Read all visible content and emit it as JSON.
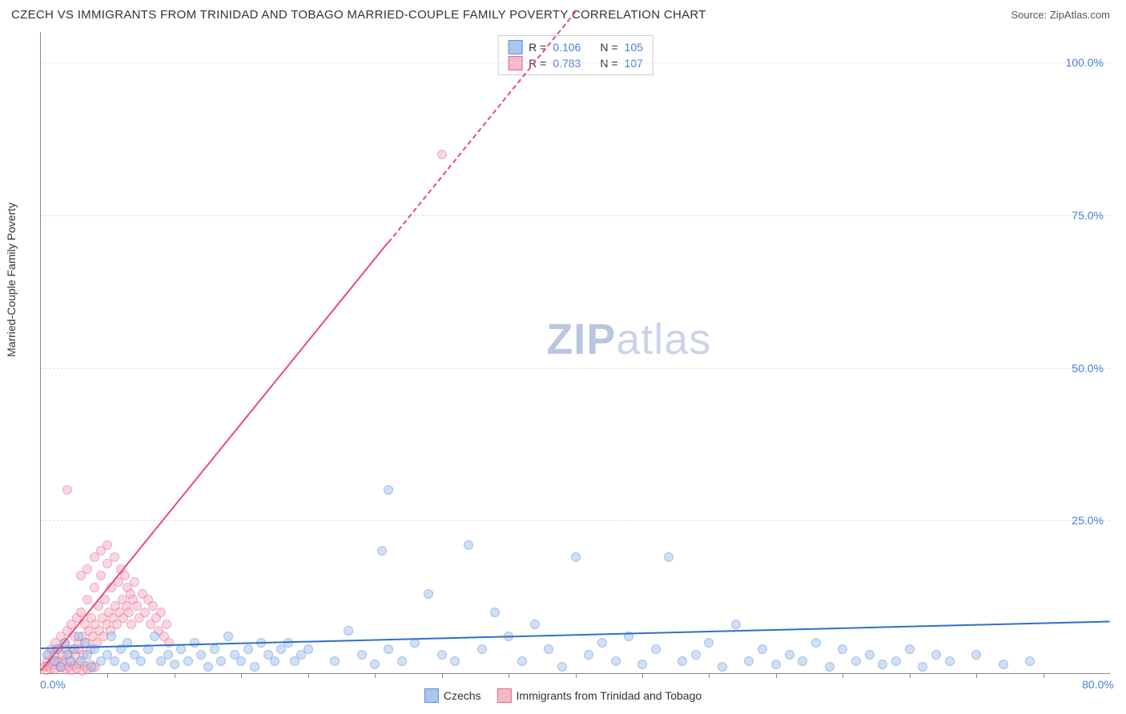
{
  "header": {
    "title": "CZECH VS IMMIGRANTS FROM TRINIDAD AND TOBAGO MARRIED-COUPLE FAMILY POVERTY CORRELATION CHART",
    "source": "Source: ZipAtlas.com"
  },
  "watermark": {
    "zip": "ZIP",
    "atlas": "atlas"
  },
  "chart": {
    "type": "scatter",
    "y_label": "Married-Couple Family Poverty",
    "xlim": [
      0,
      80
    ],
    "ylim": [
      0,
      105
    ],
    "x_ticks_major": [
      0,
      80
    ],
    "x_ticks_minor": [
      5,
      10,
      15,
      20,
      25,
      30,
      35,
      40,
      45,
      50,
      55,
      60,
      65,
      70,
      75
    ],
    "y_ticks": [
      25,
      50,
      75,
      100
    ],
    "x_tick_labels": {
      "0": "0.0%",
      "80": "80.0%"
    },
    "y_tick_labels": {
      "25": "25.0%",
      "50": "50.0%",
      "75": "75.0%",
      "100": "100.0%"
    },
    "grid_color": "#e0e0e0",
    "axis_color": "#888888",
    "tick_label_color": "#4a7fd8",
    "background_color": "#ffffff",
    "marker_radius": 6,
    "marker_stroke_width": 1,
    "series": [
      {
        "name": "Czechs",
        "fill": "#a9c6ef",
        "stroke": "#5b8fd6",
        "fill_opacity": 0.55,
        "R": 0.106,
        "N": 105,
        "trend": {
          "slope": 0.055,
          "intercept": 4.2,
          "color": "#2f6fd0",
          "solid_to_x": 80,
          "width": 2
        },
        "points": [
          [
            0.5,
            3
          ],
          [
            1,
            2
          ],
          [
            1.2,
            4
          ],
          [
            1.5,
            1
          ],
          [
            1.8,
            5
          ],
          [
            2,
            3
          ],
          [
            2.2,
            2
          ],
          [
            2.5,
            4
          ],
          [
            2.8,
            6
          ],
          [
            3,
            2
          ],
          [
            3.3,
            5
          ],
          [
            3.5,
            3
          ],
          [
            3.8,
            1
          ],
          [
            4,
            4
          ],
          [
            4.5,
            2
          ],
          [
            5,
            3
          ],
          [
            5.3,
            6
          ],
          [
            5.5,
            2
          ],
          [
            6,
            4
          ],
          [
            6.3,
            1
          ],
          [
            6.5,
            5
          ],
          [
            7,
            3
          ],
          [
            7.5,
            2
          ],
          [
            8,
            4
          ],
          [
            8.5,
            6
          ],
          [
            9,
            2
          ],
          [
            9.5,
            3
          ],
          [
            10,
            1.5
          ],
          [
            10.5,
            4
          ],
          [
            11,
            2
          ],
          [
            11.5,
            5
          ],
          [
            12,
            3
          ],
          [
            12.5,
            1
          ],
          [
            13,
            4
          ],
          [
            13.5,
            2
          ],
          [
            14,
            6
          ],
          [
            14.5,
            3
          ],
          [
            15,
            2
          ],
          [
            15.5,
            4
          ],
          [
            16,
            1
          ],
          [
            16.5,
            5
          ],
          [
            17,
            3
          ],
          [
            17.5,
            2
          ],
          [
            18,
            4
          ],
          [
            18.5,
            5
          ],
          [
            19,
            2
          ],
          [
            19.5,
            3
          ],
          [
            20,
            4
          ],
          [
            22,
            2
          ],
          [
            23,
            7
          ],
          [
            24,
            3
          ],
          [
            25,
            1.5
          ],
          [
            25.5,
            20
          ],
          [
            26,
            4
          ],
          [
            27,
            2
          ],
          [
            28,
            5
          ],
          [
            29,
            13
          ],
          [
            30,
            3
          ],
          [
            31,
            2
          ],
          [
            32,
            21
          ],
          [
            33,
            4
          ],
          [
            34,
            10
          ],
          [
            35,
            6
          ],
          [
            36,
            2
          ],
          [
            37,
            8
          ],
          [
            38,
            4
          ],
          [
            39,
            1
          ],
          [
            40,
            19
          ],
          [
            41,
            3
          ],
          [
            42,
            5
          ],
          [
            43,
            2
          ],
          [
            44,
            6
          ],
          [
            45,
            1.5
          ],
          [
            46,
            4
          ],
          [
            47,
            19
          ],
          [
            48,
            2
          ],
          [
            49,
            3
          ],
          [
            50,
            5
          ],
          [
            51,
            1
          ],
          [
            52,
            8
          ],
          [
            53,
            2
          ],
          [
            54,
            4
          ],
          [
            26,
            30
          ],
          [
            55,
            1.5
          ],
          [
            56,
            3
          ],
          [
            57,
            2
          ],
          [
            58,
            5
          ],
          [
            59,
            1
          ],
          [
            60,
            4
          ],
          [
            61,
            2
          ],
          [
            62,
            3
          ],
          [
            63,
            1.5
          ],
          [
            64,
            2
          ],
          [
            65,
            4
          ],
          [
            66,
            1
          ],
          [
            67,
            3
          ],
          [
            68,
            2
          ],
          [
            70,
            3
          ],
          [
            72,
            1.5
          ],
          [
            74,
            2
          ]
        ]
      },
      {
        "name": "Immigrants from Trinidad and Tobago",
        "fill": "#f6b8c8",
        "stroke": "#e06b8a",
        "fill_opacity": 0.55,
        "R": 0.783,
        "N": 107,
        "trend": {
          "slope": 2.7,
          "intercept": 0.5,
          "color": "#e84a7a",
          "solid_to_x": 26,
          "dash_to_x": 40,
          "width": 2
        },
        "points": [
          [
            0.3,
            1
          ],
          [
            0.5,
            2
          ],
          [
            0.6,
            3
          ],
          [
            0.7,
            1.5
          ],
          [
            0.8,
            4
          ],
          [
            0.9,
            2
          ],
          [
            1,
            3
          ],
          [
            1.1,
            5
          ],
          [
            1.2,
            2
          ],
          [
            1.3,
            4
          ],
          [
            1.4,
            1
          ],
          [
            1.5,
            6
          ],
          [
            1.6,
            3
          ],
          [
            1.7,
            2
          ],
          [
            1.8,
            5
          ],
          [
            1.9,
            4
          ],
          [
            2,
            7
          ],
          [
            2.1,
            3
          ],
          [
            2.2,
            2
          ],
          [
            2.3,
            8
          ],
          [
            2.4,
            4
          ],
          [
            2.5,
            6
          ],
          [
            2.6,
            3
          ],
          [
            2.7,
            9
          ],
          [
            2.8,
            5
          ],
          [
            2.9,
            4
          ],
          [
            3,
            10
          ],
          [
            3.1,
            6
          ],
          [
            3.2,
            3
          ],
          [
            3.3,
            8
          ],
          [
            3.4,
            5
          ],
          [
            3.5,
            12
          ],
          [
            3.6,
            7
          ],
          [
            3.7,
            4
          ],
          [
            3.8,
            9
          ],
          [
            3.9,
            6
          ],
          [
            4,
            14
          ],
          [
            4.1,
            8
          ],
          [
            4.2,
            5
          ],
          [
            4.3,
            11
          ],
          [
            4.4,
            7
          ],
          [
            4.5,
            16
          ],
          [
            4.6,
            9
          ],
          [
            4.7,
            6
          ],
          [
            4.8,
            12
          ],
          [
            4.9,
            8
          ],
          [
            5,
            18
          ],
          [
            5.1,
            10
          ],
          [
            5.2,
            7
          ],
          [
            5.3,
            14
          ],
          [
            5.4,
            9
          ],
          [
            5.5,
            19
          ],
          [
            5.6,
            11
          ],
          [
            5.7,
            8
          ],
          [
            5.8,
            15
          ],
          [
            5.9,
            10
          ],
          [
            6,
            17
          ],
          [
            6.1,
            12
          ],
          [
            6.2,
            9
          ],
          [
            6.3,
            16
          ],
          [
            6.4,
            11
          ],
          [
            6.5,
            14
          ],
          [
            6.6,
            10
          ],
          [
            6.7,
            13
          ],
          [
            6.8,
            8
          ],
          [
            6.9,
            12
          ],
          [
            7,
            15
          ],
          [
            7.2,
            11
          ],
          [
            7.4,
            9
          ],
          [
            7.6,
            13
          ],
          [
            7.8,
            10
          ],
          [
            8,
            12
          ],
          [
            8.2,
            8
          ],
          [
            8.4,
            11
          ],
          [
            8.6,
            9
          ],
          [
            8.8,
            7
          ],
          [
            9,
            10
          ],
          [
            9.2,
            6
          ],
          [
            9.4,
            8
          ],
          [
            9.6,
            5
          ],
          [
            0.4,
            0.5
          ],
          [
            0.5,
            1.2
          ],
          [
            0.7,
            0.8
          ],
          [
            0.9,
            1.5
          ],
          [
            1.1,
            0.6
          ],
          [
            1.3,
            1.8
          ],
          [
            1.5,
            0.9
          ],
          [
            1.7,
            1.4
          ],
          [
            1.9,
            0.7
          ],
          [
            2.1,
            1.1
          ],
          [
            2.3,
            0.5
          ],
          [
            2.5,
            1.3
          ],
          [
            2.7,
            0.8
          ],
          [
            2.9,
            1.6
          ],
          [
            3.1,
            0.4
          ],
          [
            3.3,
            1.2
          ],
          [
            3.5,
            0.7
          ],
          [
            3.7,
            1.5
          ],
          [
            3.9,
            0.9
          ],
          [
            4.1,
            1.1
          ],
          [
            2,
            30
          ],
          [
            4.5,
            20
          ],
          [
            5,
            21
          ],
          [
            3,
            16
          ],
          [
            3.5,
            17
          ],
          [
            30,
            85
          ],
          [
            4,
            19
          ]
        ]
      }
    ]
  },
  "legend_top": {
    "r_label": "R =",
    "n_label": "N ="
  },
  "legend_bottom": {
    "items": [
      "Czechs",
      "Immigrants from Trinidad and Tobago"
    ]
  }
}
